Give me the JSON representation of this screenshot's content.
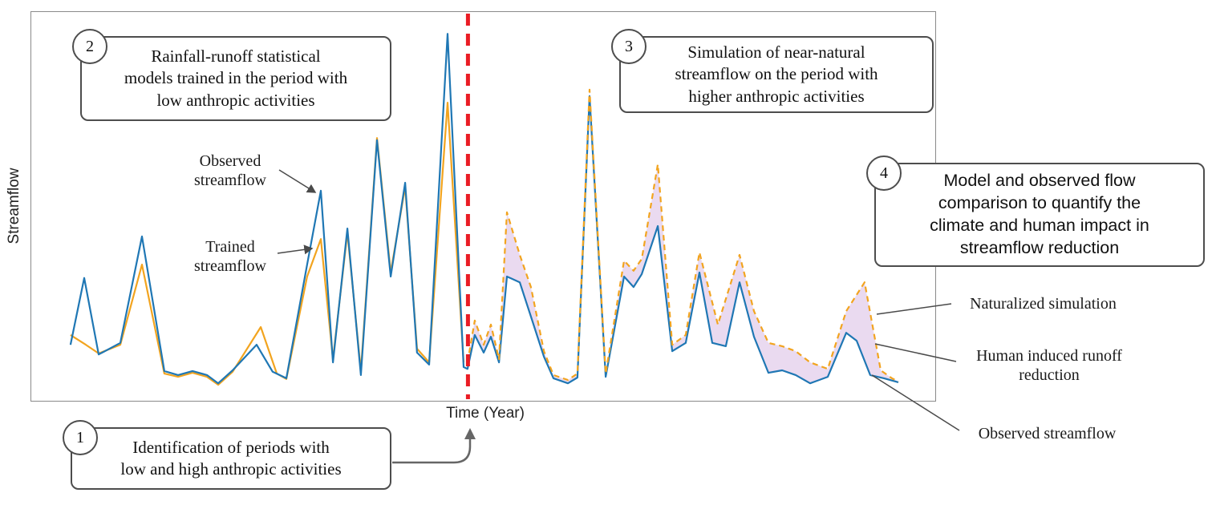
{
  "figure": {
    "y_axis_label": "Streamflow",
    "x_axis_label": "Time (Year)",
    "inner_labels": {
      "observed": [
        "Observed",
        "streamflow"
      ],
      "trained": [
        "Trained",
        "streamflow"
      ]
    },
    "side_labels": {
      "naturalized": "Naturalized simulation",
      "human": [
        "Human induced runoff",
        "reduction"
      ],
      "observed": "Observed streamflow"
    },
    "callouts": [
      {
        "number": "1",
        "lines": [
          "Identification of periods with",
          "low and high anthropic activities"
        ]
      },
      {
        "number": "2",
        "lines": [
          "Rainfall-runoff statistical",
          "models trained in the period with",
          "low anthropic activities"
        ]
      },
      {
        "number": "3",
        "lines": [
          "Simulation of near-natural",
          "streamflow on the  period with",
          "higher anthropic activities"
        ]
      },
      {
        "number": "4",
        "lines": [
          "Model and observed flow",
          "comparison to quantify the",
          "climate and human impact in",
          "streamflow reduction"
        ]
      }
    ]
  },
  "chart_data": {
    "type": "line",
    "title": "",
    "xlabel": "Time (Year)",
    "ylabel": "Streamflow",
    "xlim": [
      0,
      50
    ],
    "ylim": [
      0,
      100
    ],
    "grid": false,
    "legend_position": "annotations",
    "divider_x": 24.15,
    "colors": {
      "observed": "#1f77b4",
      "trained": "#f2a41f",
      "divider": "#ea1c24",
      "impact_fill": "#d9bce4"
    },
    "series": [
      {
        "id": "observed_pre",
        "name": "Observed streamflow (training period)",
        "style": "solid",
        "color": "#1f77b4",
        "x": [
          2.13,
          2.89,
          3.69,
          4.89,
          6.09,
          7.33,
          8.09,
          8.89,
          9.69,
          10.31,
          11.11,
          12.44,
          13.33,
          14.09,
          15.24,
          16.0,
          16.67,
          17.47,
          18.22,
          19.11,
          19.87,
          20.67,
          21.33,
          22.0,
          23.02,
          23.91
        ],
        "y": [
          11.1,
          29.6,
          8.4,
          11.6,
          41.1,
          3.8,
          2.7,
          3.8,
          2.7,
          0.4,
          4.0,
          11.1,
          3.6,
          1.8,
          33.3,
          53.8,
          6.2,
          43.3,
          2.7,
          67.8,
          30.0,
          56.0,
          8.9,
          5.6,
          97.3,
          4.9
        ]
      },
      {
        "id": "trained",
        "name": "Trained streamflow",
        "style": "solid",
        "color": "#f2a41f",
        "x": [
          2.13,
          2.98,
          3.69,
          4.89,
          6.09,
          7.33,
          8.09,
          8.89,
          9.69,
          10.31,
          11.11,
          12.67,
          13.56,
          14.09,
          15.24,
          16.0,
          16.67,
          17.47,
          18.22,
          19.11,
          19.87,
          20.67,
          21.33,
          22.0,
          23.02,
          23.91
        ],
        "y": [
          13.8,
          11.1,
          8.7,
          11.1,
          33.3,
          3.1,
          2.2,
          3.3,
          2.2,
          0.0,
          3.6,
          16.0,
          3.1,
          1.6,
          30.0,
          40.4,
          7.1,
          42.2,
          3.8,
          68.4,
          31.1,
          54.9,
          10.0,
          6.2,
          78.2,
          6.2
        ]
      },
      {
        "id": "observed_post",
        "name": "Observed streamflow (impacted period)",
        "style": "solid",
        "color": "#1f77b4",
        "x": [
          24.13,
          24.53,
          25.02,
          25.42,
          25.87,
          26.31,
          27.02,
          27.64,
          28.36,
          28.89,
          29.69,
          30.22,
          30.89,
          31.78,
          32.8,
          33.33,
          33.78,
          34.67,
          35.47,
          36.22,
          36.98,
          37.69,
          38.44,
          39.2,
          40.0,
          40.8,
          41.56,
          42.31,
          43.11,
          44.09,
          45.11,
          45.69,
          46.44,
          47.2,
          48.0
        ],
        "y": [
          4.4,
          13.8,
          8.9,
          13.3,
          6.2,
          30.0,
          28.4,
          18.9,
          7.8,
          1.8,
          0.4,
          2.0,
          80.0,
          2.2,
          30.0,
          27.1,
          30.7,
          44.0,
          9.3,
          11.6,
          31.1,
          11.6,
          10.7,
          28.4,
          13.3,
          3.3,
          4.0,
          2.7,
          0.4,
          2.2,
          14.4,
          12.2,
          2.7,
          1.8,
          0.7
        ]
      },
      {
        "id": "naturalized",
        "name": "Naturalized simulation",
        "style": "dashed",
        "color": "#f2a41f",
        "x": [
          24.13,
          24.53,
          25.02,
          25.42,
          25.87,
          26.31,
          27.02,
          27.64,
          28.36,
          28.89,
          29.69,
          30.22,
          30.89,
          31.78,
          32.8,
          33.33,
          33.78,
          34.67,
          35.47,
          36.22,
          36.98,
          38.0,
          39.2,
          40.0,
          40.8,
          41.56,
          42.31,
          43.11,
          44.09,
          45.11,
          46.13,
          47.02,
          47.64,
          48.0
        ],
        "y": [
          6.2,
          17.8,
          11.1,
          16.7,
          7.1,
          47.8,
          36.0,
          27.1,
          9.3,
          2.7,
          1.3,
          3.1,
          81.8,
          3.1,
          34.4,
          31.6,
          34.9,
          61.1,
          11.1,
          13.8,
          36.7,
          16.7,
          36.0,
          20.4,
          11.6,
          10.7,
          9.3,
          6.2,
          4.4,
          20.4,
          28.4,
          4.0,
          1.8,
          0.9
        ]
      }
    ]
  }
}
